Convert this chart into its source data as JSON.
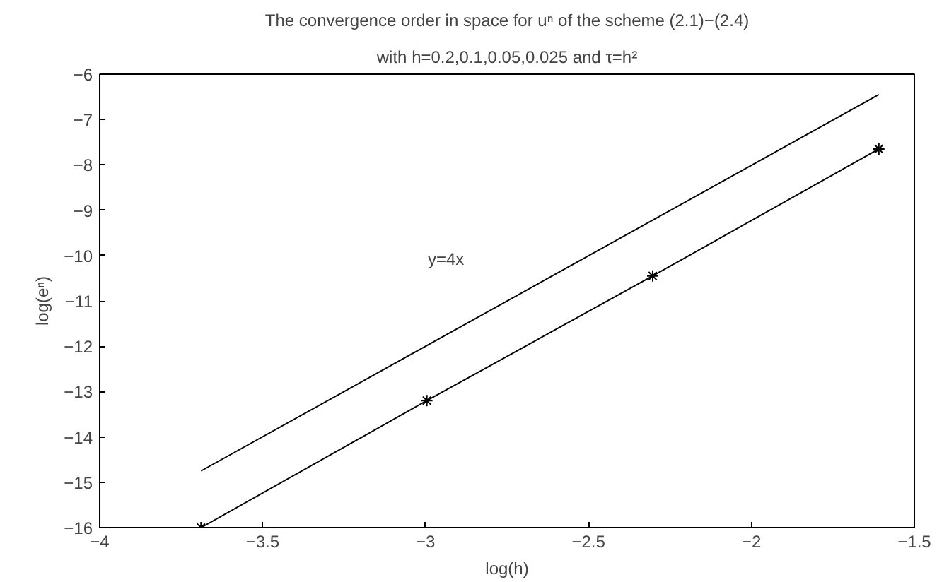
{
  "chart_data": {
    "type": "line",
    "title": "The convergence order in space for uⁿ of the scheme (2.1)−(2.4)",
    "subtitle": "with h=0.2,0.1,0.05,0.025 and τ=h²",
    "xlabel": "log(h)",
    "ylabel": "log(eⁿ)",
    "series": [
      {
        "color": "#000000",
        "x": [
          -3.689,
          -2.996,
          -2.303,
          -1.609
        ],
        "values": [
          -16.0,
          -13.2,
          -10.45,
          -7.65
        ],
        "marker": "cross"
      },
      {
        "color": "#000000",
        "x": [
          -3.689,
          -1.609
        ],
        "values": [
          -14.75,
          -6.45
        ],
        "marker": "none"
      }
    ],
    "annotations": [
      "y=4x"
    ],
    "xlim": [
      -4,
      -1.5
    ],
    "xticks": [
      -4,
      -3.5,
      -3,
      -2.5,
      -2,
      -1.5
    ],
    "ylim": [
      -16,
      -6
    ],
    "yticks": [
      -16,
      -15,
      -14,
      -13,
      -12,
      -11,
      -10,
      -9,
      -8,
      -7,
      -6
    ],
    "grid": false,
    "line_style": "solid"
  }
}
